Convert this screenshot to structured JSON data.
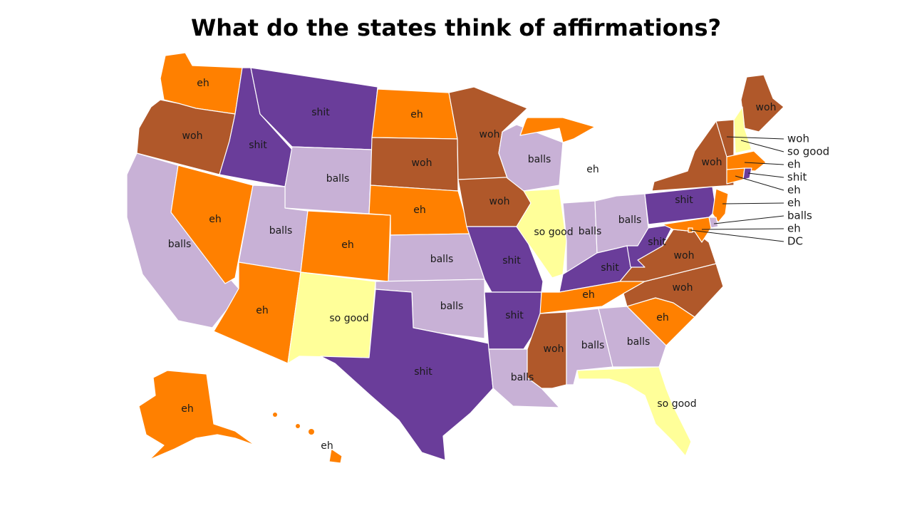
{
  "title": "What do the states think of affirmations?",
  "colors": {
    "woh": "#b0582a",
    "so good": "#ffff99",
    "eh": "#ff8000",
    "shit": "#6a3d9a",
    "balls": "#c8b1d6"
  },
  "states": [
    {
      "id": "WA",
      "value": "eh"
    },
    {
      "id": "OR",
      "value": "woh"
    },
    {
      "id": "CA",
      "value": "balls"
    },
    {
      "id": "NV",
      "value": "eh"
    },
    {
      "id": "ID",
      "value": "shit"
    },
    {
      "id": "MT",
      "value": "shit"
    },
    {
      "id": "WY",
      "value": "balls"
    },
    {
      "id": "UT",
      "value": "balls"
    },
    {
      "id": "AZ",
      "value": "eh"
    },
    {
      "id": "CO",
      "value": "eh"
    },
    {
      "id": "NM",
      "value": "so good"
    },
    {
      "id": "ND",
      "value": "eh"
    },
    {
      "id": "SD",
      "value": "woh"
    },
    {
      "id": "NE",
      "value": "eh"
    },
    {
      "id": "KS",
      "value": "balls"
    },
    {
      "id": "OK",
      "value": "balls"
    },
    {
      "id": "TX",
      "value": "shit"
    },
    {
      "id": "MN",
      "value": "woh"
    },
    {
      "id": "IA",
      "value": "woh"
    },
    {
      "id": "MO",
      "value": "shit"
    },
    {
      "id": "AR",
      "value": "shit"
    },
    {
      "id": "LA",
      "value": "balls"
    },
    {
      "id": "WI",
      "value": "balls"
    },
    {
      "id": "IL",
      "value": "so good"
    },
    {
      "id": "MI",
      "value": "eh"
    },
    {
      "id": "IN",
      "value": "balls"
    },
    {
      "id": "OH",
      "value": "balls"
    },
    {
      "id": "KY",
      "value": "shit"
    },
    {
      "id": "TN",
      "value": "eh"
    },
    {
      "id": "MS",
      "value": "woh"
    },
    {
      "id": "AL",
      "value": "balls"
    },
    {
      "id": "GA",
      "value": "balls"
    },
    {
      "id": "FL",
      "value": "so good"
    },
    {
      "id": "SC",
      "value": "eh"
    },
    {
      "id": "NC",
      "value": "woh"
    },
    {
      "id": "VA",
      "value": "woh"
    },
    {
      "id": "WV",
      "value": "shit"
    },
    {
      "id": "PA",
      "value": "shit"
    },
    {
      "id": "NY",
      "value": "woh"
    },
    {
      "id": "ME",
      "value": "woh"
    },
    {
      "id": "AK",
      "value": "eh"
    },
    {
      "id": "HI",
      "value": "eh"
    },
    {
      "id": "NJ",
      "value": "eh"
    },
    {
      "id": "MD",
      "value": "eh"
    },
    {
      "id": "VT",
      "value": "woh"
    },
    {
      "id": "NH",
      "value": "so good"
    },
    {
      "id": "MA",
      "value": "eh"
    },
    {
      "id": "RI",
      "value": "shit"
    },
    {
      "id": "CT",
      "value": "eh"
    },
    {
      "id": "DE",
      "value": "balls"
    },
    {
      "id": "DC",
      "value": "eh"
    }
  ],
  "callouts": [
    {
      "state": "VT",
      "text": "woh"
    },
    {
      "state": "NH",
      "text": "so good"
    },
    {
      "state": "MA",
      "text": "eh"
    },
    {
      "state": "RI",
      "text": "shit"
    },
    {
      "state": "CT",
      "text": "eh"
    },
    {
      "state": "NJ",
      "text": "eh"
    },
    {
      "state": "DE",
      "text": "balls"
    },
    {
      "state": "MD",
      "text": "eh"
    },
    {
      "state": "DC",
      "text": "DC"
    }
  ]
}
